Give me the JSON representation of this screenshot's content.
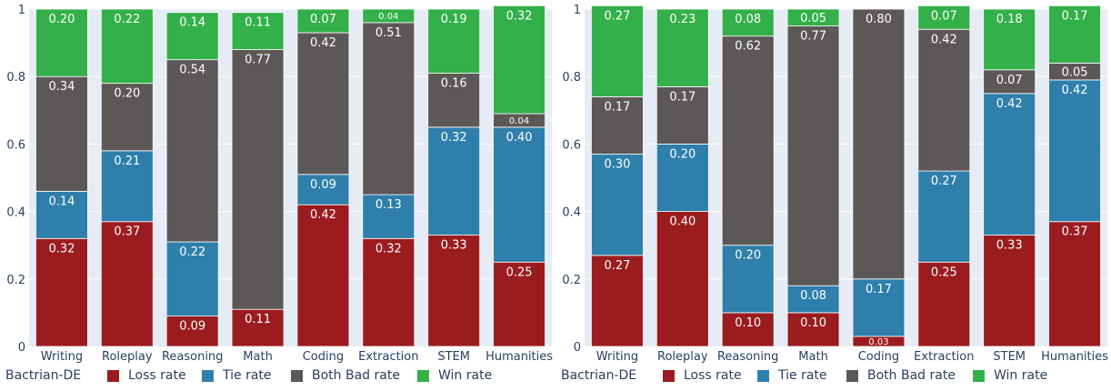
{
  "chart_data": [
    {
      "type": "bar",
      "stacked": true,
      "caption": "Bactrian-DE",
      "categories": [
        "Writing",
        "Roleplay",
        "Reasoning",
        "Math",
        "Coding",
        "Extraction",
        "STEM",
        "Humanities"
      ],
      "ylim": [
        0,
        1
      ],
      "yticks": [
        "0",
        "0.2",
        "0.4",
        "0.6",
        "0.8",
        "1"
      ],
      "grid": true,
      "legend_position": "bottom",
      "series": [
        {
          "name": "Loss rate",
          "color": "#9b1c1f",
          "values": [
            0.32,
            0.37,
            0.09,
            0.11,
            0.42,
            0.32,
            0.33,
            0.25
          ],
          "labels": [
            "0.32",
            "0.37",
            "0.09",
            "0.11",
            "0.42",
            "0.32",
            "0.33",
            "0.25"
          ]
        },
        {
          "name": "Tie rate",
          "color": "#2e7fab",
          "values": [
            0.14,
            0.21,
            0.22,
            0.0,
            0.09,
            0.13,
            0.32,
            0.4
          ],
          "labels": [
            "0.14",
            "0.21",
            "0.22",
            "",
            "0.09",
            "0.13",
            "0.32",
            "0.40"
          ]
        },
        {
          "name": "Both Bad rate",
          "color": "#5c5858",
          "values": [
            0.34,
            0.2,
            0.54,
            0.77,
            0.42,
            0.51,
            0.16,
            0.04
          ],
          "labels": [
            "0.34",
            "0.20",
            "0.54",
            "0.77",
            "0.42",
            "0.51",
            "0.16",
            "0.04"
          ]
        },
        {
          "name": "Win rate",
          "color": "#33b04a",
          "values": [
            0.2,
            0.22,
            0.14,
            0.11,
            0.07,
            0.04,
            0.19,
            0.32
          ],
          "labels": [
            "0.20",
            "0.22",
            "0.14",
            "0.11",
            "0.07",
            "0.04",
            "0.19",
            "0.32"
          ]
        }
      ]
    },
    {
      "type": "bar",
      "stacked": true,
      "caption": "Bactrian-DE",
      "categories": [
        "Writing",
        "Roleplay",
        "Reasoning",
        "Math",
        "Coding",
        "Extraction",
        "STEM",
        "Humanities"
      ],
      "ylim": [
        0,
        1
      ],
      "yticks": [
        "0",
        "0.2",
        "0.4",
        "0.6",
        "0.8",
        "1"
      ],
      "grid": true,
      "legend_position": "bottom",
      "series": [
        {
          "name": "Loss rate",
          "color": "#9b1c1f",
          "values": [
            0.27,
            0.4,
            0.1,
            0.1,
            0.03,
            0.25,
            0.33,
            0.37
          ],
          "labels": [
            "0.27",
            "0.40",
            "0.10",
            "0.10",
            "0.03",
            "0.25",
            "0.33",
            "0.37"
          ]
        },
        {
          "name": "Tie rate",
          "color": "#2e7fab",
          "values": [
            0.3,
            0.2,
            0.2,
            0.08,
            0.17,
            0.27,
            0.42,
            0.42
          ],
          "labels": [
            "0.30",
            "0.20",
            "0.20",
            "0.08",
            "0.17",
            "0.27",
            "0.42",
            "0.42"
          ]
        },
        {
          "name": "Both Bad rate",
          "color": "#5c5858",
          "values": [
            0.17,
            0.17,
            0.62,
            0.77,
            0.8,
            0.42,
            0.07,
            0.05
          ],
          "labels": [
            "0.17",
            "0.17",
            "0.62",
            "0.77",
            "0.80",
            "0.42",
            "0.07",
            "0.05"
          ]
        },
        {
          "name": "Win rate",
          "color": "#33b04a",
          "values": [
            0.27,
            0.23,
            0.08,
            0.05,
            0.0,
            0.07,
            0.18,
            0.17
          ],
          "labels": [
            "0.27",
            "0.23",
            "0.08",
            "0.05",
            "",
            "0.07",
            "0.18",
            "0.17"
          ]
        }
      ]
    }
  ]
}
